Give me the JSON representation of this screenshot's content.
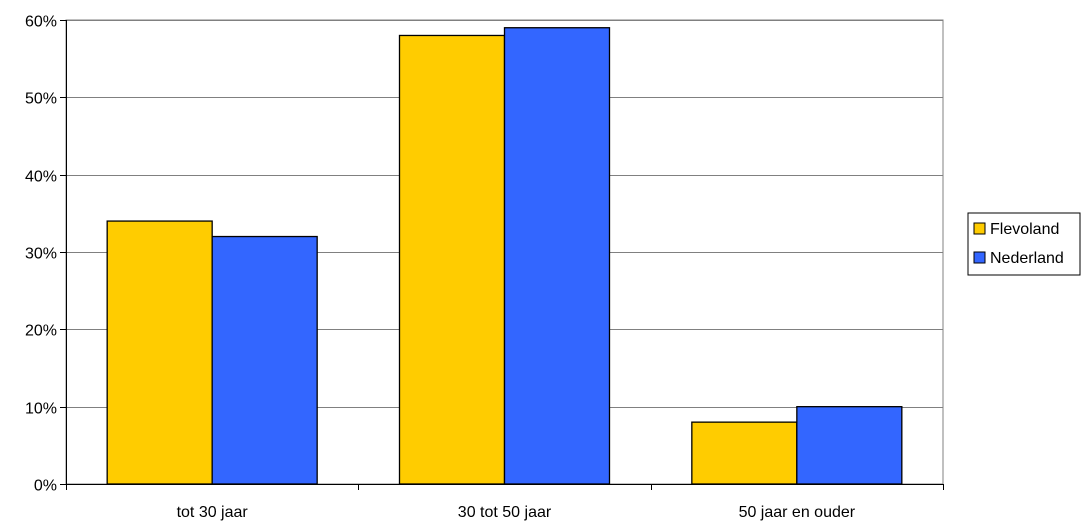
{
  "chart_data": {
    "type": "bar",
    "title": "",
    "xlabel": "",
    "ylabel": "",
    "categories": [
      "tot 30 jaar",
      "30 tot 50 jaar",
      "50 jaar en ouder"
    ],
    "series": [
      {
        "name": "Flevoland",
        "color": "#ffcc00",
        "values": [
          34,
          58,
          8
        ]
      },
      {
        "name": "Nederland",
        "color": "#3366ff",
        "values": [
          32,
          59,
          10
        ]
      }
    ],
    "ylim": [
      0,
      60
    ],
    "yticks": [
      0,
      10,
      20,
      30,
      40,
      50,
      60
    ],
    "ytick_labels": [
      "0%",
      "10%",
      "20%",
      "30%",
      "40%",
      "50%",
      "60%"
    ],
    "grid": true,
    "legend_position": "right"
  }
}
